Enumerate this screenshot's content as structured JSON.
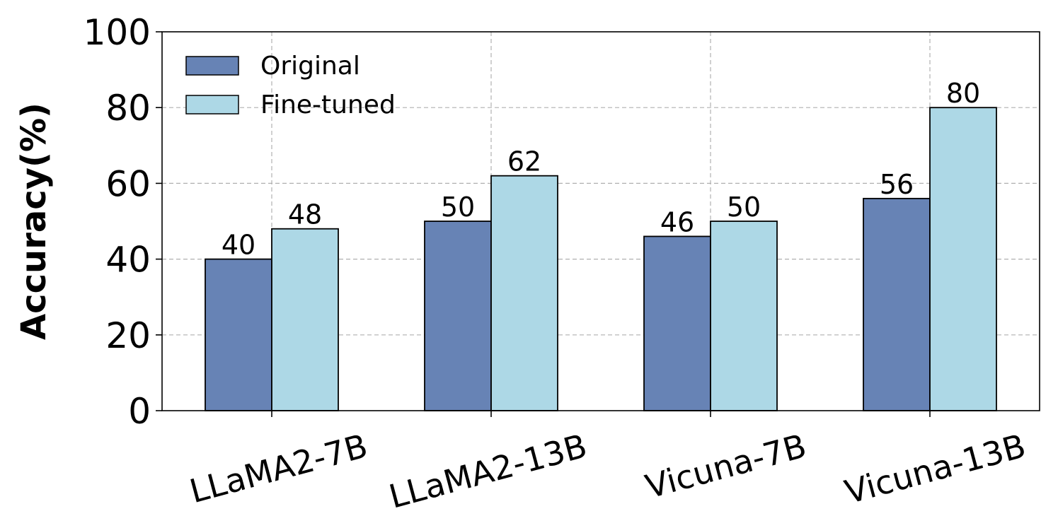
{
  "chart_data": {
    "type": "bar",
    "categories": [
      "LLaMA2-7B",
      "LLaMA2-13B",
      "Vicuna-7B",
      "Vicuna-13B"
    ],
    "series": [
      {
        "name": "Original",
        "values": [
          40,
          50,
          46,
          56
        ],
        "color": "#6783b5"
      },
      {
        "name": "Fine-tuned",
        "values": [
          48,
          62,
          50,
          80
        ],
        "color": "#add8e6"
      }
    ],
    "title": "",
    "xlabel": "",
    "ylabel": "Accuracy(%)",
    "ylim": [
      0,
      100
    ],
    "yticks": [
      0,
      20,
      40,
      60,
      80,
      100
    ],
    "grid": true,
    "legend": "top-left",
    "data_labels": true
  }
}
